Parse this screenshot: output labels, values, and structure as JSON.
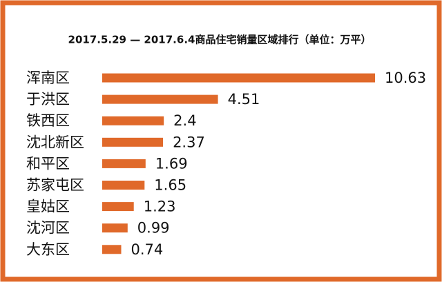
{
  "chart_data": {
    "type": "bar",
    "orientation": "horizontal",
    "title": "2017.5.29 — 2017.6.4商品住宅销量区域排行（单位：万平）",
    "categories": [
      "浑南区",
      "于洪区",
      "铁西区",
      "沈北新区",
      "和平区",
      "苏家屯区",
      "皇姑区",
      "沈河区",
      "大东区"
    ],
    "values": [
      10.63,
      4.51,
      2.4,
      2.37,
      1.69,
      1.65,
      1.23,
      0.99,
      0.74
    ],
    "color": "#e0692a"
  }
}
